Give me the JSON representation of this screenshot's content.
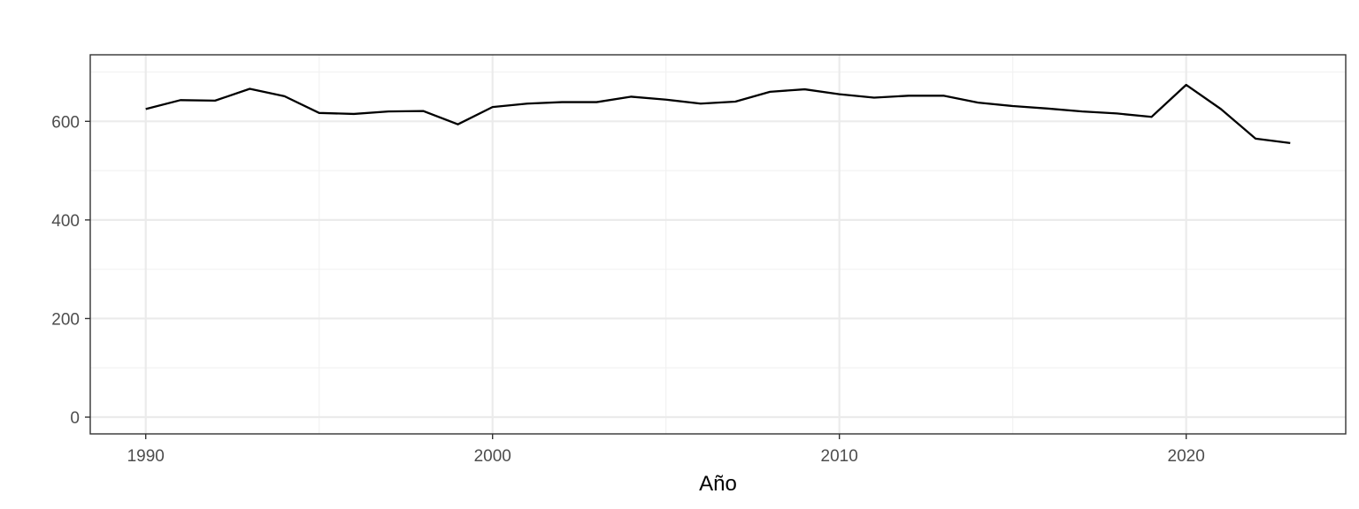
{
  "chart_data": {
    "type": "line",
    "title": "",
    "xlabel": "Año",
    "ylabel": "",
    "x": [
      1990,
      1991,
      1992,
      1993,
      1994,
      1995,
      1996,
      1997,
      1998,
      1999,
      2000,
      2001,
      2002,
      2003,
      2004,
      2005,
      2006,
      2007,
      2008,
      2009,
      2010,
      2011,
      2012,
      2013,
      2014,
      2015,
      2016,
      2017,
      2018,
      2019,
      2020,
      2021,
      2022,
      2023
    ],
    "series": [
      {
        "name": "",
        "values": [
          625,
          643,
          642,
          666,
          651,
          617,
          615,
          620,
          621,
          594,
          629,
          636,
          639,
          639,
          650,
          644,
          636,
          640,
          660,
          665,
          655,
          648,
          652,
          652,
          638,
          631,
          626,
          620,
          616,
          609,
          674,
          625,
          565,
          556
        ]
      }
    ],
    "xlim": [
      1988.4,
      2024.6
    ],
    "ylim": [
      -34,
      735
    ],
    "x_ticks": [
      1990,
      2000,
      2010,
      2020
    ],
    "y_ticks": [
      0,
      200,
      400,
      600
    ],
    "x_tick_labels": [
      "1990",
      "2000",
      "2010",
      "2020"
    ],
    "y_tick_labels": [
      "0",
      "200",
      "400",
      "600"
    ],
    "x_minor_ticks": [
      1995,
      2005,
      2015
    ],
    "y_minor_ticks": [
      100,
      300,
      500,
      700
    ],
    "grid": true,
    "legend": "none",
    "colors": {
      "line": "#000000",
      "grid_major": "#ebebeb",
      "grid_minor": "#f2f2f2",
      "panel_border": "#333333",
      "tick_text": "#4d4d4d"
    }
  }
}
